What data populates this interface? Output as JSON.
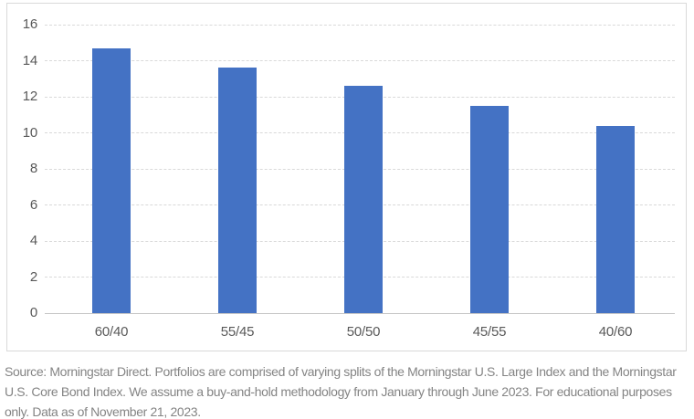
{
  "chart_data": {
    "type": "bar",
    "title": "",
    "xlabel": "",
    "ylabel": "",
    "categories": [
      "60/40",
      "55/45",
      "50/50",
      "45/55",
      "40/60"
    ],
    "values": [
      14.7,
      13.6,
      12.6,
      11.5,
      10.4
    ],
    "ylim": [
      0,
      16
    ],
    "ytick_step": 2,
    "ytick_labels": [
      "0",
      "2",
      "4",
      "6",
      "8",
      "10",
      "12",
      "14",
      "16"
    ],
    "grid": true,
    "legend_position": "none",
    "bar_color": "#4472c4",
    "gridline_color": "#d9d9d9",
    "axis_baseline_color": "#c6c6c6",
    "tick_label_color": "#595959",
    "frame_border_color": "#d9d9d9"
  },
  "footnote": {
    "text": "Source: Morningstar Direct. Portfolios are comprised of varying splits of the Morningstar U.S. Large Index and the Morningstar U.S. Core Bond Index. We assume a buy-and-hold methodology from January through June 2023. For educational purposes only. Data as of November 21, 2023.",
    "color": "#848484"
  }
}
